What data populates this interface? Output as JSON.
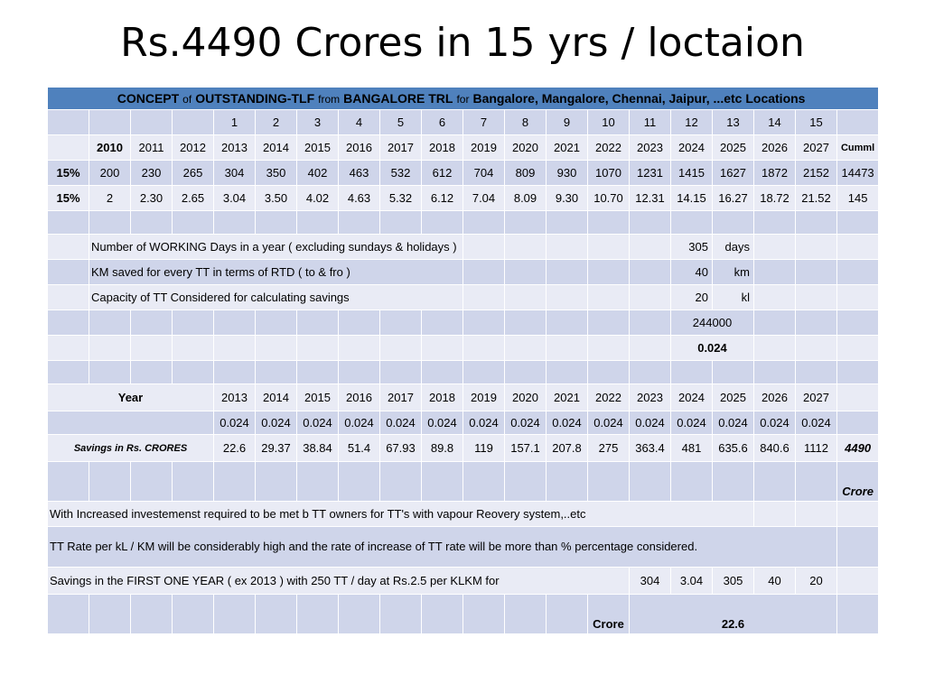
{
  "title": "Rs.4490  Crores   in 15 yrs / loctaion",
  "header": {
    "parts": [
      {
        "text": "CONCEPT",
        "bold": true
      },
      {
        "text": "of",
        "bold": false
      },
      {
        "text": "OUTSTANDING-TLF",
        "bold": true
      },
      {
        "text": "from",
        "bold": false
      },
      {
        "text": "BANGALORE   TRL",
        "bold": true
      },
      {
        "text": "for",
        "bold": false
      },
      {
        "text": "Bangalore, Mangalore,  Chennai, Jaipur, ...etc  Locations",
        "bold": true
      }
    ]
  },
  "index_row": [
    "1",
    "2",
    "3",
    "4",
    "5",
    "6",
    "7",
    "8",
    "9",
    "10",
    "11",
    "12",
    "13",
    "14",
    "15"
  ],
  "years_row": {
    "first": "2010",
    "years": [
      "2011",
      "2012",
      "2013",
      "2014",
      "2015",
      "2016",
      "2017",
      "2018",
      "2019",
      "2020",
      "2021",
      "2022",
      "2023",
      "2024",
      "2025",
      "2026",
      "2027"
    ],
    "last": "Cumml"
  },
  "growth_row1": {
    "label": "15%",
    "values": [
      "200",
      "230",
      "265",
      "304",
      "350",
      "402",
      "463",
      "532",
      "612",
      "704",
      "809",
      "930",
      "1070",
      "1231",
      "1415",
      "1627",
      "1872",
      "2152"
    ],
    "total": "14473"
  },
  "growth_row2": {
    "label": "15%",
    "values": [
      "2",
      "2.30",
      "2.65",
      "3.04",
      "3.50",
      "4.02",
      "4.63",
      "5.32",
      "6.12",
      "7.04",
      "8.09",
      "9.30",
      "10.70",
      "12.31",
      "14.15",
      "16.27",
      "18.72",
      "21.52"
    ],
    "total": "145"
  },
  "assumptions": [
    {
      "text": "Number of WORKING Days  in a year  ( excluding sundays & holidays )",
      "value": "305",
      "unit": "days"
    },
    {
      "text": "KM  saved for every  TT in terms of RTD  ( to & fro )",
      "value": "40",
      "unit": "km"
    },
    {
      "text": "Capacity of  TT  Considered  for  calculating savings",
      "value": "20",
      "unit": "kl"
    }
  ],
  "calc": {
    "product": "244000",
    "factor": "0.024"
  },
  "year_section": {
    "label": "Year",
    "years": [
      "2013",
      "2014",
      "2015",
      "2016",
      "2017",
      "2018",
      "2019",
      "2020",
      "2021",
      "2022",
      "2023",
      "2024",
      "2025",
      "2026",
      "2027"
    ],
    "factors": [
      "0.024",
      "0.024",
      "0.024",
      "0.024",
      "0.024",
      "0.024",
      "0.024",
      "0.024",
      "0.024",
      "0.024",
      "0.024",
      "0.024",
      "0.024",
      "0.024",
      "0.024"
    ],
    "savings_label": "Savings in Rs.  CRORES",
    "savings": [
      "22.6",
      "29.37",
      "38.84",
      "51.4",
      "67.93",
      "89.8",
      "119",
      "157.1",
      "207.8",
      "275",
      "363.4",
      "481",
      "635.6",
      "840.6",
      "1112"
    ],
    "savings_total": "4490",
    "crore_label": "Crore"
  },
  "notes": {
    "investment": "With Increased investemenst required to be met b TT owners for TT's with vapour Reovery system,..etc",
    "rate": "TT  Rate per kL / KM will  be  considerably  high  and the rate of increase of TT rate will be more than % percentage considered."
  },
  "first_year": {
    "text": "Savings in the FIRST  ONE  YEAR   ( ex  2013 )   with 250 TT / day  at Rs.2.5 per KLKM for",
    "values": [
      "304",
      "3.04",
      "305",
      "40",
      "20"
    ],
    "crore_label": "Crore",
    "result": "22.6"
  }
}
